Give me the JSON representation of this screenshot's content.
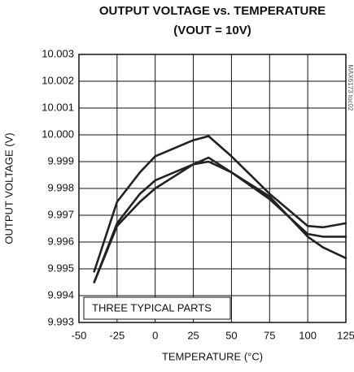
{
  "chart_data": {
    "type": "line",
    "title": "OUTPUT VOLTAGE vs. TEMPERATURE",
    "subtitle": "(VOUT = 10V)",
    "x_label": "TEMPERATURE (°C)",
    "y_label": "OUTPUT VOLTAGE (V)",
    "annotations": [
      "THREE TYPICAL PARTS",
      "MAX6173 toc02"
    ],
    "x": [
      -40,
      -25,
      -10,
      0,
      25,
      35,
      50,
      75,
      100,
      110,
      125
    ],
    "series": [
      {
        "color": "#222222",
        "values": [
          9.9949,
          9.9975,
          9.9986,
          9.9992,
          9.9998,
          9.99995,
          9.9992,
          9.9978,
          9.9966,
          9.99655,
          9.9967
        ]
      },
      {
        "color": "#222222",
        "values": [
          9.9945,
          9.9967,
          9.9978,
          9.9983,
          9.9989,
          9.99915,
          9.9986,
          9.9976,
          9.9963,
          9.9962,
          9.9962
        ]
      },
      {
        "color": "#222222",
        "values": [
          9.9945,
          9.9966,
          9.9975,
          9.998,
          9.9989,
          9.999,
          9.9986,
          9.9977,
          9.9962,
          9.9958,
          9.9954
        ]
      }
    ],
    "xlim": [
      -50,
      125
    ],
    "xticks": [
      -50,
      -25,
      0,
      25,
      50,
      75,
      100,
      125
    ],
    "ylim": [
      9.993,
      10.003
    ],
    "yticks": [
      9.993,
      9.994,
      9.995,
      9.996,
      9.997,
      9.998,
      9.999,
      {
        "value": 10,
        "label": "10.000"
      },
      10.001,
      10.002,
      10.003
    ],
    "grid": true
  }
}
